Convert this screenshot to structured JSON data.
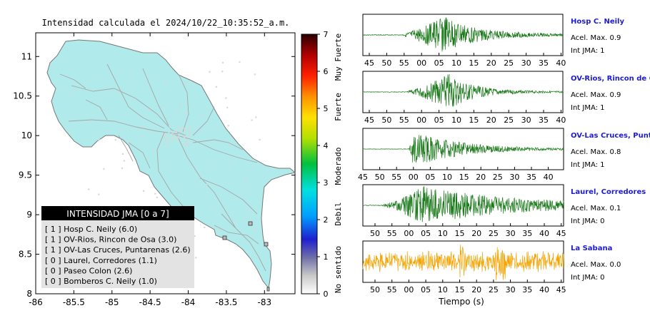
{
  "map": {
    "title": "Intensidad calculada el 2024/10/22_10:35:52_a.m.",
    "xticks": [
      "-86",
      "-85.5",
      "-85",
      "-84.5",
      "-84",
      "-83.5",
      "-83"
    ],
    "yticks": [
      "11",
      "10.5",
      "10",
      "9.5",
      "9",
      "8.5",
      "8"
    ],
    "xlim": [
      -86,
      -82.6
    ],
    "ylim": [
      8,
      11.3
    ],
    "land_color": "#b0eaeb",
    "legend": {
      "title": "INTENSIDAD JMA [0 a 7]",
      "items": [
        "[ 1 ]  Hosp C. Neily (6.0)",
        "[ 1 ]  OV-Rios, Rincon de Osa (3.0)",
        "[ 1 ]  OV-Las Cruces, Puntarenas (2.6)",
        "[ 0 ]  Laurel, Corredores (1.1)",
        "[ 0 ]  Paseo Colon (2.6)",
        "[ 0 ]  Bomberos C. Neily (1.0)"
      ]
    }
  },
  "colorbar": {
    "ticks": [
      "7",
      "6",
      "5",
      "4",
      "3",
      "2",
      "1",
      "0"
    ],
    "labels": [
      "Muy Fuerte",
      "Fuerte",
      "Moderado",
      "Debil",
      "No sentido"
    ]
  },
  "chart_data": [
    {
      "type": "line",
      "name": "Hosp C. Neily",
      "peak": "Acel. Max. 0.9",
      "int": "Int JMA: 1",
      "color": "#1a7a1a",
      "xticks": [
        "45",
        "50",
        "55",
        "00",
        "05",
        "10",
        "15",
        "20",
        "25",
        "30",
        "35",
        "40"
      ],
      "signal": {
        "start": 0.2,
        "peak": 0.4,
        "decay": 0.16,
        "noise": 0.05,
        "seed": 3
      }
    },
    {
      "type": "line",
      "name": "OV-Rios, Rincon de Os",
      "peak": "Acel. Max. 0.9",
      "int": "Int JMA: 1",
      "color": "#1a7a1a",
      "xticks": [
        "45",
        "50",
        "55",
        "00",
        "05",
        "10",
        "15",
        "20",
        "25",
        "30",
        "35",
        "40"
      ],
      "signal": {
        "start": 0.22,
        "peak": 0.43,
        "decay": 0.12,
        "noise": 0.04,
        "seed": 7
      }
    },
    {
      "type": "line",
      "name": "OV-Las Cruces, Puntar",
      "peak": "Acel. Max. 0.8",
      "int": "Int JMA: 1",
      "color": "#1a7a1a",
      "xticks": [
        "45",
        "50",
        "55",
        "00",
        "05",
        "10",
        "15",
        "20",
        "25",
        "30",
        "35",
        "40"
      ],
      "signal": {
        "start": 0.23,
        "peak": 0.25,
        "decay": 0.22,
        "noise": 0.03,
        "seed": 11
      }
    },
    {
      "type": "line",
      "name": "Laurel, Corredores",
      "peak": "Acel. Max. 0.1",
      "int": "Int JMA: 0",
      "color": "#1a7a1a",
      "xticks": [
        "50",
        "55",
        "00",
        "05",
        "10",
        "15",
        "20",
        "25",
        "30",
        "35",
        "40",
        "45"
      ],
      "signal": {
        "start": 0.1,
        "peak": 0.3,
        "decay": 0.45,
        "noise": 0.05,
        "seed": 19
      }
    },
    {
      "type": "line",
      "name": "La Sabana",
      "peak": "Acel. Max. 0.0",
      "int": "Int JMA: 0",
      "color": "#f5a300",
      "xticks": [
        "50",
        "55",
        "00",
        "05",
        "10",
        "15",
        "20",
        "25",
        "30",
        "35",
        "40",
        "45"
      ],
      "signal": {
        "start": 0.0,
        "peak": 0.5,
        "decay": 3.0,
        "noise": 0.35,
        "seed": 23
      }
    }
  ],
  "xlabel": "Tiempo (s)"
}
